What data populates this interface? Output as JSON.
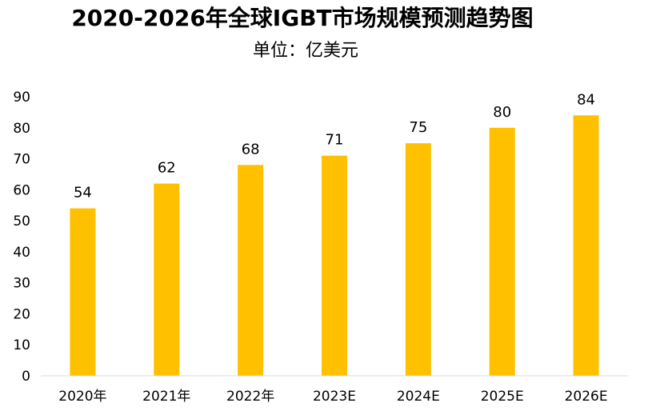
{
  "chart_data": {
    "type": "bar",
    "title": "2020-2026年全球IGBT市场规模预测趋势图",
    "subtitle": "单位：亿美元",
    "xlabel": "",
    "ylabel": "",
    "categories": [
      "2020年",
      "2021年",
      "2022年",
      "2023E",
      "2024E",
      "2025E",
      "2026E"
    ],
    "values": [
      54,
      62,
      68,
      71,
      75,
      80,
      84
    ],
    "ylim": [
      0,
      90
    ],
    "yticks": [
      0,
      10,
      20,
      30,
      40,
      50,
      60,
      70,
      80,
      90
    ],
    "grid": false,
    "legend": "none",
    "bar_color": "#FFC000",
    "axis_color": "#D9D9D9"
  }
}
